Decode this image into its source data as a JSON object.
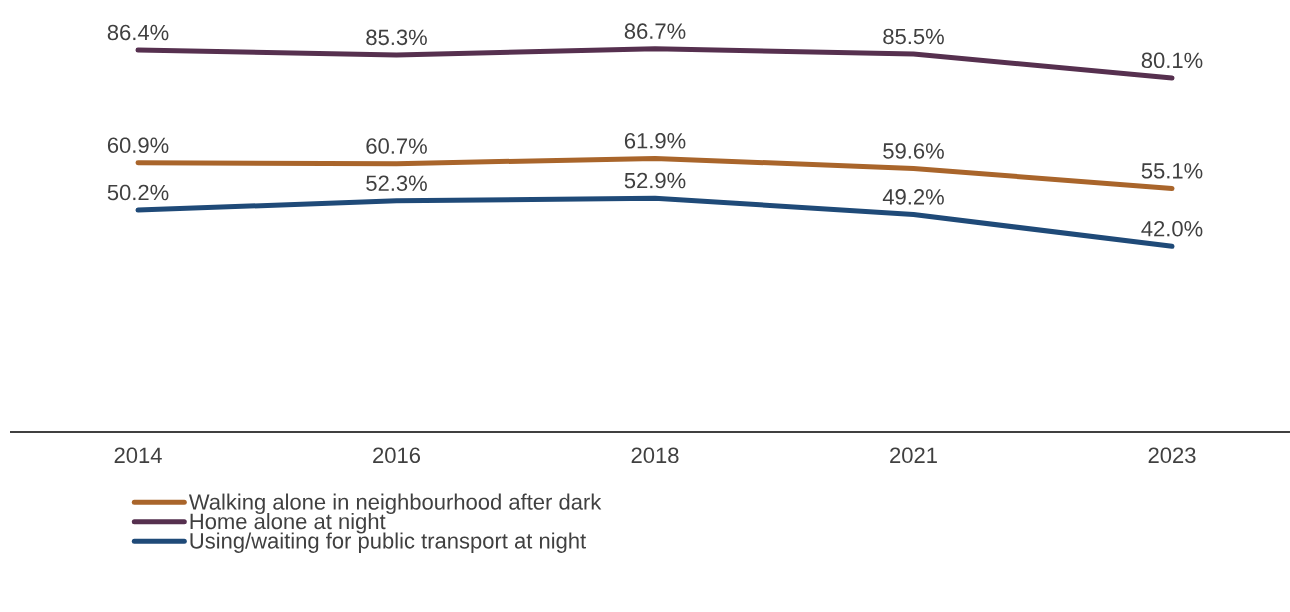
{
  "chart_data": {
    "type": "line",
    "categories": [
      "2014",
      "2016",
      "2018",
      "2021",
      "2023"
    ],
    "series": [
      {
        "name": "Walking alone in neighbourhood after dark",
        "color": "#a9652b",
        "values": [
          60.9,
          60.7,
          61.9,
          59.6,
          55.1
        ],
        "value_labels": [
          "60.9%",
          "60.7%",
          "61.9%",
          "59.6%",
          "55.1%"
        ]
      },
      {
        "name": "Home alone at night",
        "color": "#56304f",
        "values": [
          86.4,
          85.3,
          86.7,
          85.5,
          80.1
        ],
        "value_labels": [
          "86.4%",
          "85.3%",
          "86.7%",
          "85.5%",
          "80.1%"
        ]
      },
      {
        "name": "Using/waiting for public transport at night",
        "color": "#1f4a78",
        "values": [
          50.2,
          52.3,
          52.9,
          49.2,
          42.0
        ],
        "value_labels": [
          "50.2%",
          "52.3%",
          "52.9%",
          "49.2%",
          "42.0%"
        ]
      }
    ],
    "tick_labels": "x",
    "legend": "bottom",
    "marker": "none",
    "line_style": "solid",
    "grid": false
  }
}
